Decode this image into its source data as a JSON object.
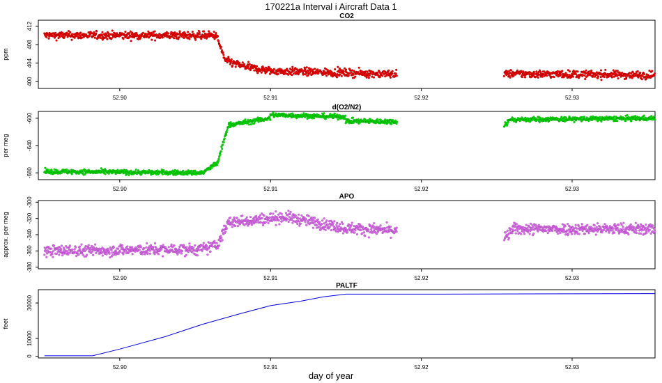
{
  "figure": {
    "title": "170221a   Interval i Aircraft Data 1",
    "xlabel": "day of year"
  },
  "chart_data": [
    {
      "type": "scatter",
      "title": "CO2",
      "ylabel": "ppm",
      "color": "#ee0000",
      "xlim": [
        52.8946,
        52.9355
      ],
      "ylim": [
        398.5,
        413.3
      ],
      "yticks": [
        400,
        404,
        408,
        412
      ],
      "xticks": [
        52.9,
        52.91,
        52.92,
        52.93
      ],
      "xtick_labels": [
        "52.90",
        "52.91",
        "52.92",
        "52.93"
      ],
      "grid": false,
      "legend": "none",
      "segments": [
        {
          "x": [
            52.895,
            52.8965
          ],
          "y": [
            410,
            410
          ]
        },
        {
          "x": [
            52.8965,
            52.9064
          ],
          "y": [
            410,
            410
          ]
        },
        {
          "x": [
            52.9064,
            52.907
          ],
          "y": [
            410,
            404.5
          ]
        },
        {
          "x": [
            52.907,
            52.908
          ],
          "y": [
            404.5,
            403.5
          ]
        },
        {
          "x": [
            52.908,
            52.909
          ],
          "y": [
            403.5,
            402.8
          ]
        },
        {
          "x": [
            52.909,
            52.91
          ],
          "y": [
            402.8,
            402.3
          ]
        },
        {
          "x": [
            52.91,
            52.9184
          ],
          "y": [
            402.3,
            401.6
          ]
        },
        {
          "x": [
            52.9255,
            52.9355
          ],
          "y": [
            401.7,
            401.4
          ]
        }
      ],
      "noise": 0.6
    },
    {
      "type": "scatter",
      "title": "d(O2/N2)",
      "ylabel": "per meg",
      "color": "#00dd00",
      "xlim": [
        52.8946,
        52.9355
      ],
      "ylim": [
        -690,
        -590
      ],
      "yticks": [
        -680,
        -640,
        -600
      ],
      "xticks": [
        52.9,
        52.91,
        52.92,
        52.93
      ],
      "xtick_labels": [
        "52.90",
        "52.91",
        "52.92",
        "52.93"
      ],
      "grid": false,
      "legend": "none",
      "segments": [
        {
          "x": [
            52.895,
            52.9055
          ],
          "y": [
            -678,
            -680
          ]
        },
        {
          "x": [
            52.9055,
            52.9065
          ],
          "y": [
            -680,
            -665
          ]
        },
        {
          "x": [
            52.9065,
            52.9072
          ],
          "y": [
            -665,
            -610
          ]
        },
        {
          "x": [
            52.9072,
            52.91
          ],
          "y": [
            -610,
            -600
          ]
        },
        {
          "x": [
            52.91,
            52.915
          ],
          "y": [
            -595,
            -598
          ]
        },
        {
          "x": [
            52.915,
            52.9184
          ],
          "y": [
            -604,
            -605
          ]
        },
        {
          "x": [
            52.9255,
            52.926
          ],
          "y": [
            -610,
            -600
          ]
        },
        {
          "x": [
            52.926,
            52.9355
          ],
          "y": [
            -602,
            -600
          ]
        }
      ],
      "noise": 2.5
    },
    {
      "type": "scatter",
      "title": "APO",
      "ylabel": "approx. per meg",
      "color": "#dd66ee",
      "xlim": [
        52.8946,
        52.9355
      ],
      "ylim": [
        -382,
        -298
      ],
      "yticks": [
        -380,
        -360,
        -340,
        -320,
        -300
      ],
      "xticks": [
        52.9,
        52.91,
        52.92,
        52.93
      ],
      "xtick_labels": [
        "52.90",
        "52.91",
        "52.92",
        "52.93"
      ],
      "grid": false,
      "legend": "none",
      "segments": [
        {
          "x": [
            52.895,
            52.9055
          ],
          "y": [
            -360,
            -358
          ]
        },
        {
          "x": [
            52.9055,
            52.9065
          ],
          "y": [
            -358,
            -352
          ]
        },
        {
          "x": [
            52.9065,
            52.9072
          ],
          "y": [
            -352,
            -325
          ]
        },
        {
          "x": [
            52.9072,
            52.911
          ],
          "y": [
            -325,
            -318
          ]
        },
        {
          "x": [
            52.911,
            52.915
          ],
          "y": [
            -318,
            -332
          ]
        },
        {
          "x": [
            52.915,
            52.9184
          ],
          "y": [
            -332,
            -335
          ]
        },
        {
          "x": [
            52.9255,
            52.926
          ],
          "y": [
            -345,
            -335
          ]
        },
        {
          "x": [
            52.926,
            52.9355
          ],
          "y": [
            -333,
            -333
          ]
        }
      ],
      "noise": 5
    },
    {
      "type": "line",
      "title": "PALTF",
      "ylabel": "feet",
      "color": "#0000dd",
      "xlim": [
        52.8946,
        52.9355
      ],
      "ylim": [
        -1000,
        37500
      ],
      "yticks": [
        0,
        10000,
        30000
      ],
      "xticks": [
        52.9,
        52.91,
        52.92,
        52.93
      ],
      "xtick_labels": [
        "52.90",
        "52.91",
        "52.92",
        "52.93"
      ],
      "grid": false,
      "legend": "none",
      "x": [
        52.895,
        52.8982,
        52.9,
        52.903,
        52.9055,
        52.908,
        52.91,
        52.912,
        52.9135,
        52.915,
        52.92,
        52.93,
        52.9355
      ],
      "y": [
        200,
        200,
        4000,
        11000,
        18000,
        24000,
        28500,
        31000,
        33500,
        35000,
        35000,
        35200,
        35300
      ]
    }
  ]
}
